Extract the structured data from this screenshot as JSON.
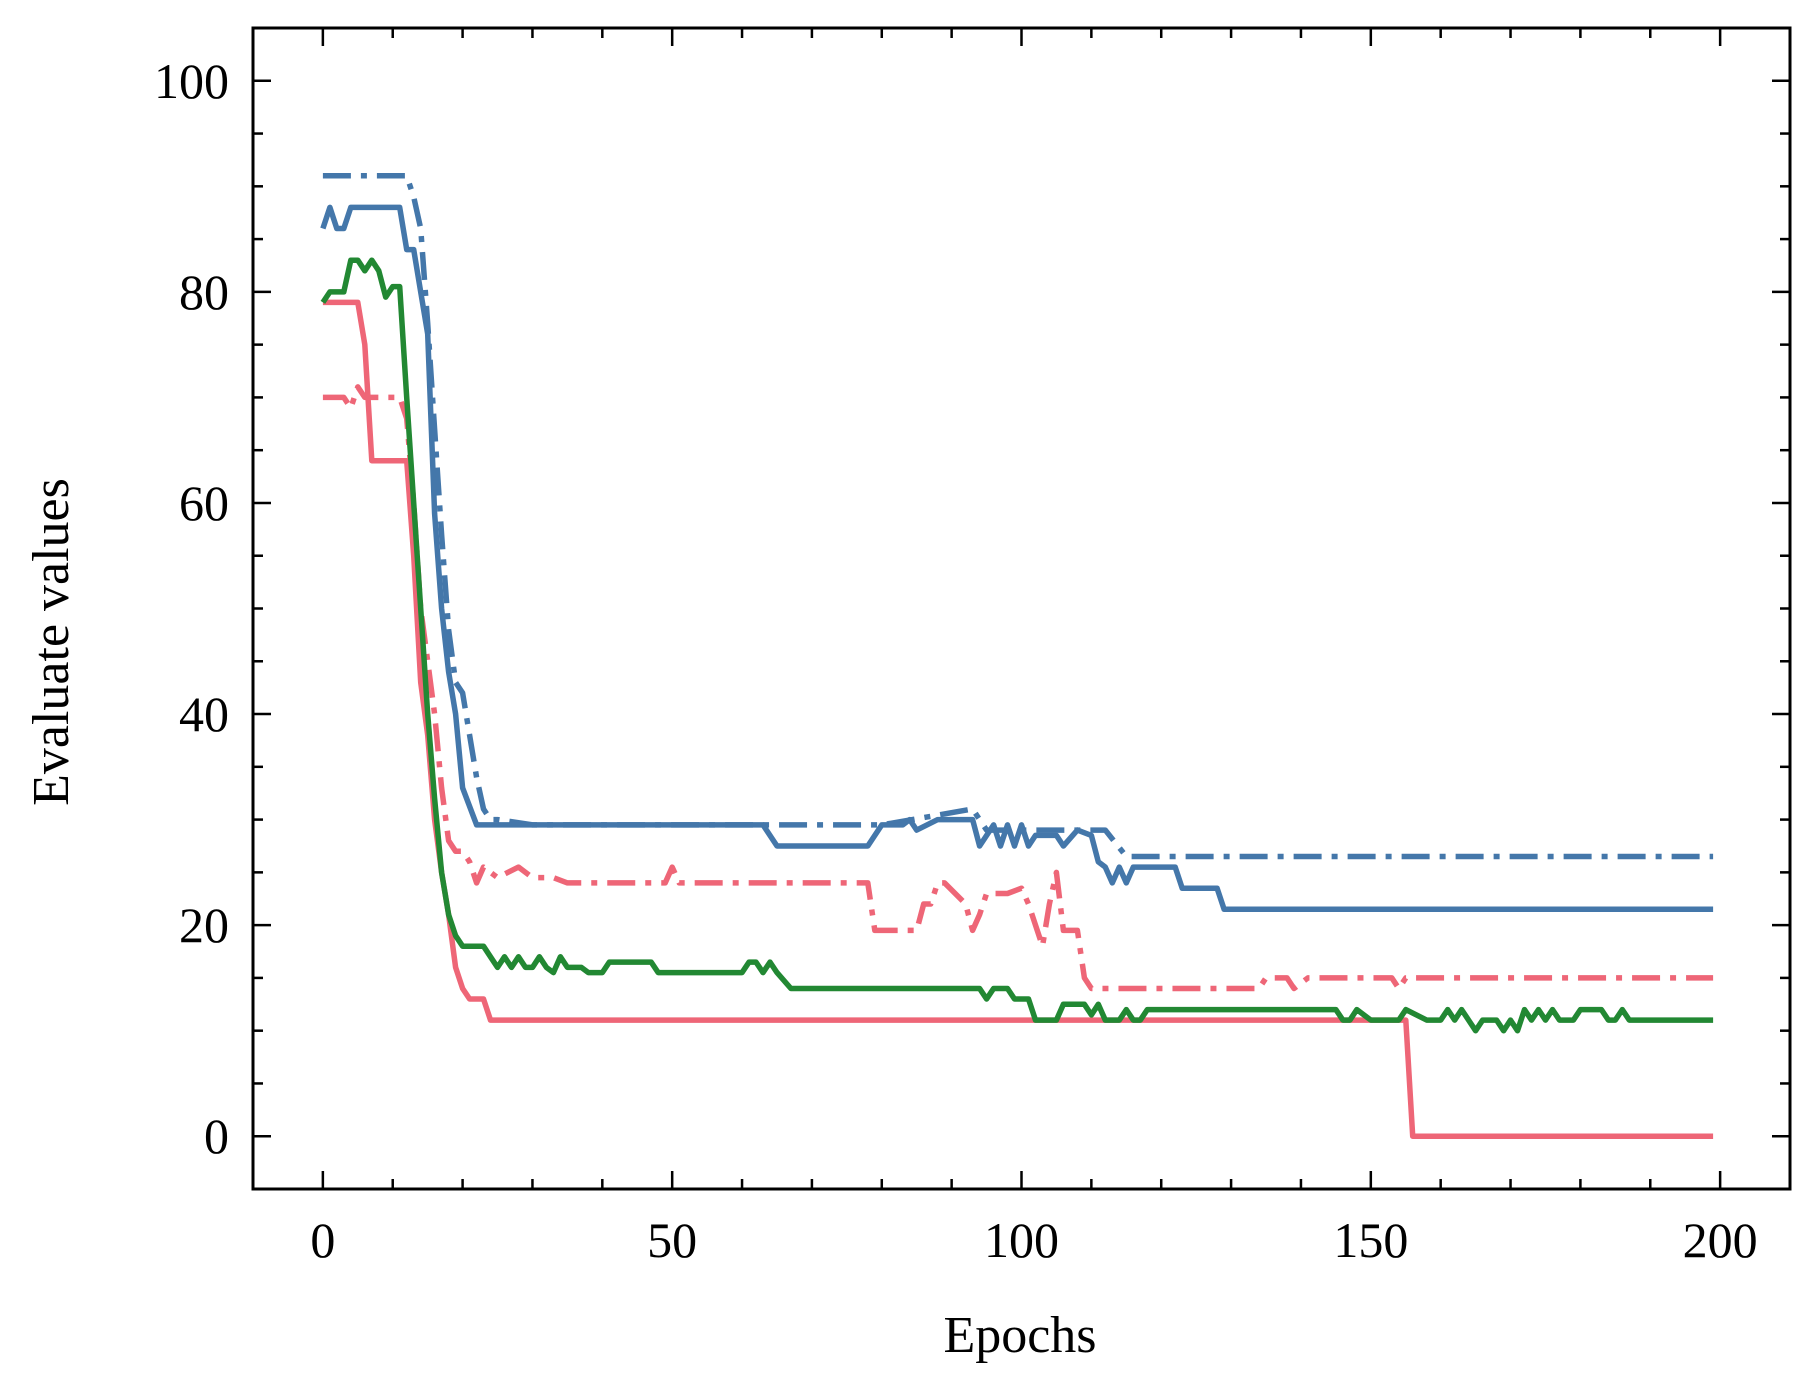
{
  "chart_data": {
    "type": "line",
    "title": "",
    "xlabel": "Epochs",
    "ylabel": "Evaluate values",
    "xlim": [
      -10,
      210
    ],
    "ylim": [
      -5,
      105
    ],
    "x_ticks": [
      0,
      50,
      100,
      150,
      200
    ],
    "y_ticks": [
      0,
      20,
      40,
      60,
      80,
      100
    ],
    "x_tick_labels": [
      "0",
      "50",
      "100",
      "150",
      "200"
    ],
    "y_tick_labels": [
      "0",
      "20",
      "40",
      "60",
      "80",
      "100"
    ],
    "x_minor_step": 10,
    "y_minor_step": 5,
    "grid": false,
    "legend": "none",
    "series": [
      {
        "name": "blue dash-dot",
        "color": "#4477AA",
        "style": "dashdot",
        "points": [
          [
            0,
            91
          ],
          [
            12,
            91
          ],
          [
            13,
            89
          ],
          [
            14,
            86
          ],
          [
            15,
            77
          ],
          [
            16,
            67
          ],
          [
            17,
            57
          ],
          [
            18,
            48
          ],
          [
            19,
            43
          ],
          [
            20,
            42
          ],
          [
            21,
            38
          ],
          [
            22,
            34
          ],
          [
            23,
            31
          ],
          [
            24,
            30
          ],
          [
            25,
            30
          ],
          [
            30,
            29.5
          ],
          [
            60,
            29.5
          ],
          [
            80,
            29.5
          ],
          [
            93,
            31
          ],
          [
            95,
            29
          ],
          [
            100,
            29
          ],
          [
            112,
            29
          ],
          [
            115,
            26.5
          ],
          [
            199,
            26.5
          ]
        ]
      },
      {
        "name": "blue solid",
        "color": "#4477AA",
        "style": "solid",
        "points": [
          [
            0,
            86
          ],
          [
            1,
            88
          ],
          [
            2,
            86
          ],
          [
            3,
            86
          ],
          [
            4,
            88
          ],
          [
            11,
            88
          ],
          [
            12,
            84
          ],
          [
            13,
            84
          ],
          [
            14,
            80
          ],
          [
            15,
            76
          ],
          [
            16,
            59
          ],
          [
            17,
            50
          ],
          [
            18,
            44
          ],
          [
            19,
            40
          ],
          [
            20,
            33
          ],
          [
            22,
            29.5
          ],
          [
            63,
            29.5
          ],
          [
            65,
            27.5
          ],
          [
            78,
            27.5
          ],
          [
            80,
            29.5
          ],
          [
            83,
            29.5
          ],
          [
            84,
            30
          ],
          [
            85,
            29
          ],
          [
            88,
            30
          ],
          [
            93,
            30
          ],
          [
            94,
            27.5
          ],
          [
            96,
            29.5
          ],
          [
            97,
            27.5
          ],
          [
            98,
            29.5
          ],
          [
            99,
            27.5
          ],
          [
            100,
            29.5
          ],
          [
            101,
            27.5
          ],
          [
            102,
            28.5
          ],
          [
            105,
            28.5
          ],
          [
            106,
            27.5
          ],
          [
            108,
            29
          ],
          [
            110,
            28.5
          ],
          [
            111,
            26
          ],
          [
            112,
            25.5
          ],
          [
            113,
            24
          ],
          [
            114,
            25.5
          ],
          [
            115,
            24
          ],
          [
            116,
            25.5
          ],
          [
            122,
            25.5
          ],
          [
            123,
            23.5
          ],
          [
            128,
            23.5
          ],
          [
            129,
            21.5
          ],
          [
            199,
            21.5
          ]
        ]
      },
      {
        "name": "red dash-dot",
        "color": "#EE6677",
        "style": "dashdot",
        "points": [
          [
            0,
            70
          ],
          [
            3,
            70
          ],
          [
            4,
            69
          ],
          [
            5,
            71
          ],
          [
            6,
            70
          ],
          [
            11,
            70
          ],
          [
            12,
            68
          ],
          [
            13,
            60
          ],
          [
            14,
            50
          ],
          [
            15,
            45
          ],
          [
            16,
            40
          ],
          [
            17,
            33
          ],
          [
            18,
            28
          ],
          [
            19,
            27
          ],
          [
            20,
            27
          ],
          [
            21,
            26
          ],
          [
            22,
            24
          ],
          [
            23,
            25.5
          ],
          [
            25,
            24.5
          ],
          [
            28,
            25.5
          ],
          [
            30,
            24.5
          ],
          [
            33,
            24.5
          ],
          [
            35,
            24
          ],
          [
            49,
            24
          ],
          [
            50,
            25.5
          ],
          [
            51,
            24
          ],
          [
            78,
            24
          ],
          [
            79,
            19.5
          ],
          [
            85,
            19.5
          ],
          [
            86,
            22
          ],
          [
            87,
            22
          ],
          [
            88,
            24
          ],
          [
            89,
            24
          ],
          [
            92,
            22
          ],
          [
            93,
            19.5
          ],
          [
            94,
            21
          ],
          [
            95,
            23
          ],
          [
            98,
            23
          ],
          [
            100,
            23.5
          ],
          [
            101,
            22
          ],
          [
            102,
            20
          ],
          [
            103,
            18
          ],
          [
            104,
            22
          ],
          [
            105,
            25
          ],
          [
            106,
            19.5
          ],
          [
            108,
            19.5
          ],
          [
            109,
            15
          ],
          [
            110,
            14
          ],
          [
            134,
            14
          ],
          [
            135,
            15
          ],
          [
            138,
            15
          ],
          [
            139,
            14
          ],
          [
            141,
            15
          ],
          [
            153,
            15
          ],
          [
            154,
            14
          ],
          [
            155,
            15
          ],
          [
            199,
            15
          ]
        ]
      },
      {
        "name": "red solid",
        "color": "#EE6677",
        "style": "solid",
        "points": [
          [
            0,
            79
          ],
          [
            5,
            79
          ],
          [
            6,
            75
          ],
          [
            7,
            64
          ],
          [
            12,
            64
          ],
          [
            13,
            55
          ],
          [
            14,
            43
          ],
          [
            15,
            38
          ],
          [
            16,
            30
          ],
          [
            17,
            25
          ],
          [
            18,
            21
          ],
          [
            19,
            16
          ],
          [
            20,
            14
          ],
          [
            21,
            13
          ],
          [
            23,
            13
          ],
          [
            24,
            11
          ],
          [
            155,
            11
          ],
          [
            156,
            0
          ],
          [
            199,
            0
          ]
        ]
      },
      {
        "name": "green solid",
        "color": "#228833",
        "style": "solid",
        "points": [
          [
            0,
            79
          ],
          [
            1,
            80
          ],
          [
            3,
            80
          ],
          [
            4,
            83
          ],
          [
            5,
            83
          ],
          [
            6,
            82
          ],
          [
            7,
            83
          ],
          [
            8,
            82
          ],
          [
            9,
            79.5
          ],
          [
            10,
            80.5
          ],
          [
            11,
            80.5
          ],
          [
            12,
            70
          ],
          [
            13,
            60
          ],
          [
            14,
            50
          ],
          [
            15,
            40
          ],
          [
            16,
            32
          ],
          [
            17,
            25
          ],
          [
            18,
            21
          ],
          [
            19,
            19
          ],
          [
            20,
            18
          ],
          [
            23,
            18
          ],
          [
            24,
            17
          ],
          [
            25,
            16
          ],
          [
            26,
            17
          ],
          [
            27,
            16
          ],
          [
            28,
            17
          ],
          [
            29,
            16
          ],
          [
            30,
            16
          ],
          [
            31,
            17
          ],
          [
            32,
            16
          ],
          [
            33,
            15.5
          ],
          [
            34,
            17
          ],
          [
            35,
            16
          ],
          [
            37,
            16
          ],
          [
            38,
            15.5
          ],
          [
            40,
            15.5
          ],
          [
            41,
            16.5
          ],
          [
            47,
            16.5
          ],
          [
            48,
            15.5
          ],
          [
            60,
            15.5
          ],
          [
            61,
            16.5
          ],
          [
            62,
            16.5
          ],
          [
            63,
            15.5
          ],
          [
            64,
            16.5
          ],
          [
            65,
            15.5
          ],
          [
            67,
            14
          ],
          [
            94,
            14
          ],
          [
            95,
            13
          ],
          [
            96,
            14
          ],
          [
            98,
            14
          ],
          [
            99,
            13
          ],
          [
            101,
            13
          ],
          [
            102,
            11
          ],
          [
            105,
            11
          ],
          [
            106,
            12.5
          ],
          [
            109,
            12.5
          ],
          [
            110,
            11.5
          ],
          [
            111,
            12.5
          ],
          [
            112,
            11
          ],
          [
            114,
            11
          ],
          [
            115,
            12
          ],
          [
            116,
            11
          ],
          [
            117,
            11
          ],
          [
            118,
            12
          ],
          [
            145,
            12
          ],
          [
            146,
            11
          ],
          [
            147,
            11
          ],
          [
            148,
            12
          ],
          [
            150,
            11
          ],
          [
            154,
            11
          ],
          [
            155,
            12
          ],
          [
            158,
            11
          ],
          [
            160,
            11
          ],
          [
            161,
            12
          ],
          [
            162,
            11
          ],
          [
            163,
            12
          ],
          [
            164,
            11
          ],
          [
            165,
            10
          ],
          [
            166,
            11
          ],
          [
            168,
            11
          ],
          [
            169,
            10
          ],
          [
            170,
            11
          ],
          [
            171,
            10
          ],
          [
            172,
            12
          ],
          [
            173,
            11
          ],
          [
            174,
            12
          ],
          [
            175,
            11
          ],
          [
            176,
            12
          ],
          [
            177,
            11
          ],
          [
            179,
            11
          ],
          [
            180,
            12
          ],
          [
            183,
            12
          ],
          [
            184,
            11
          ],
          [
            185,
            11
          ],
          [
            186,
            12
          ],
          [
            187,
            11
          ],
          [
            199,
            11
          ]
        ]
      }
    ]
  }
}
